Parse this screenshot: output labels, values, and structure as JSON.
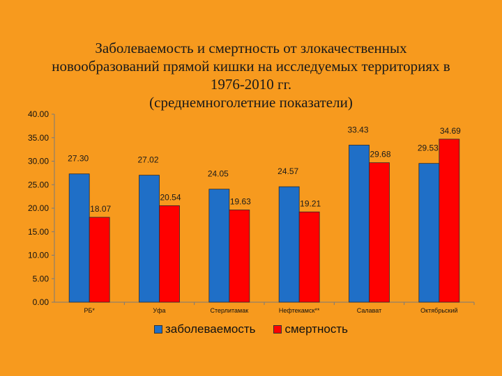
{
  "chart_data": {
    "type": "bar",
    "title_lines": [
      "Заболеваемость и смертность от злокачественных",
      "новообразований прямой кишки на исследуемых территориях в",
      "1976-2010 гг.",
      "(среднемноголетние показатели)"
    ],
    "categories": [
      "РБ*",
      "Уфа",
      "Стерлитамак",
      "Нефтекамск**",
      "Салават",
      "Октябрьский"
    ],
    "series": [
      {
        "name": "заболеваемость",
        "color": "#1F6FC7",
        "values": [
          27.3,
          27.02,
          24.05,
          24.57,
          33.43,
          29.53
        ]
      },
      {
        "name": "смертность",
        "color": "#FF0000",
        "values": [
          18.07,
          20.54,
          19.63,
          19.21,
          29.68,
          34.69
        ]
      }
    ],
    "data_labels": [
      [
        "27.30",
        "27.02",
        "24.05",
        "24.57",
        "33.43",
        "29.53"
      ],
      [
        "18.07",
        "20.54",
        "19.63",
        "19.21",
        "29.68",
        "34.69"
      ]
    ],
    "ylim": [
      0,
      40
    ],
    "yticks": [
      "0.00",
      "5.00",
      "10.00",
      "15.00",
      "20.00",
      "25.00",
      "30.00",
      "35.00",
      "40.00"
    ],
    "ytick_values": [
      0,
      5,
      10,
      15,
      20,
      25,
      30,
      35,
      40
    ],
    "grid": false,
    "legend_position": "bottom"
  }
}
